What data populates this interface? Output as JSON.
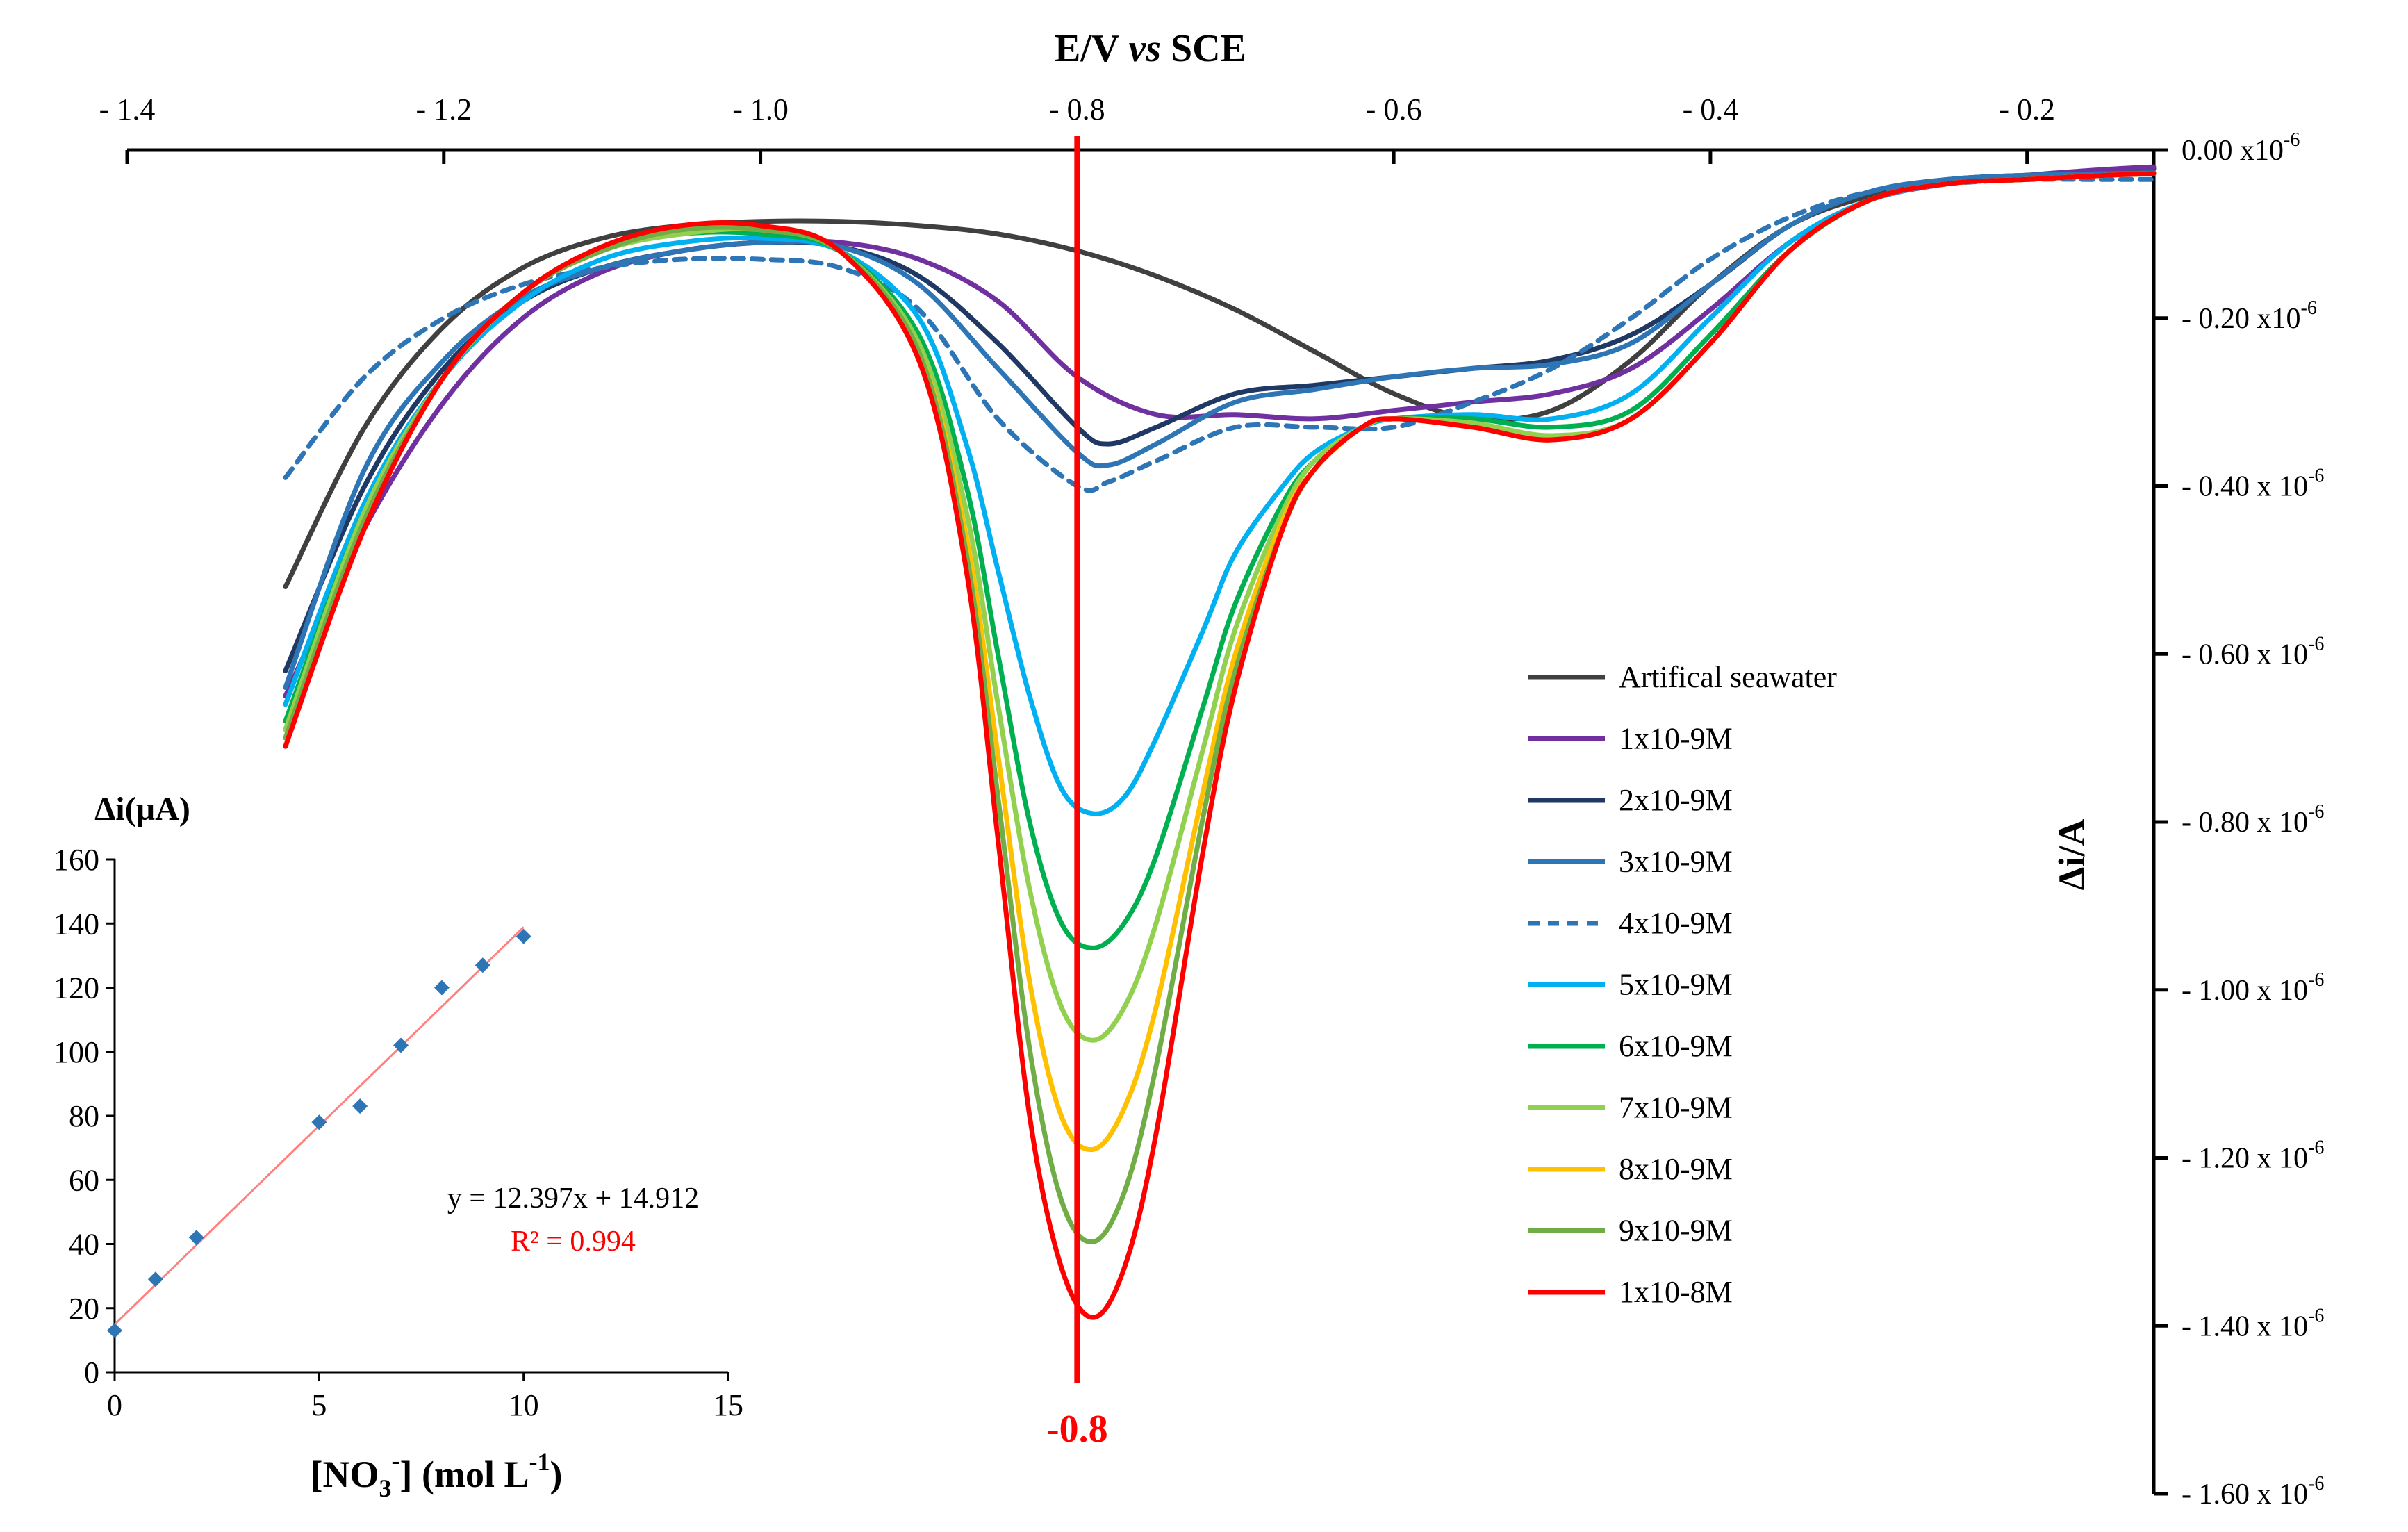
{
  "chart_data": [
    {
      "type": "line",
      "title": "",
      "xlabel_parts": [
        "E/V ",
        "vs",
        " SCE"
      ],
      "ylabel": "Δi/A",
      "xlim": [
        -1.4,
        -0.12
      ],
      "ylim": [
        0,
        1.6
      ],
      "x_ticks": [
        {
          "value": -1.4,
          "label": "- 1.4"
        },
        {
          "value": -1.2,
          "label": "- 1.2"
        },
        {
          "value": -1.0,
          "label": "- 1.0"
        },
        {
          "value": -0.8,
          "label": "- 0.8"
        },
        {
          "value": -0.6,
          "label": "- 0.6"
        },
        {
          "value": -0.4,
          "label": "- 0.4"
        },
        {
          "value": -0.2,
          "label": "- 0.2"
        }
      ],
      "y_ticks": [
        {
          "value": 0.0,
          "label": "0.00 x10",
          "exp": "-6"
        },
        {
          "value": 0.2,
          "label": "- 0.20 x10",
          "exp": "-6"
        },
        {
          "value": 0.4,
          "label": "- 0.40 x 10",
          "exp": "-6"
        },
        {
          "value": 0.6,
          "label": "- 0.60 x 10",
          "exp": "-6"
        },
        {
          "value": 0.8,
          "label": "- 0.80 x 10",
          "exp": "-6"
        },
        {
          "value": 1.0,
          "label": "- 1.00 x 10",
          "exp": "-6"
        },
        {
          "value": 1.2,
          "label": "- 1.20 x 10",
          "exp": "-6"
        },
        {
          "value": 1.4,
          "label": "- 1.40 x 10",
          "exp": "-6"
        },
        {
          "value": 1.6,
          "label": "- 1.60 x 10",
          "exp": "-6"
        }
      ],
      "y_units_note": "values are -Δi in µA (axis shows negative current ×10^-6 A)",
      "marker_line": {
        "x": -0.8,
        "label": "-0.8",
        "color": "#ff0000"
      },
      "series": [
        {
          "name": "Artifical seawater",
          "color": "#404040",
          "dash": false,
          "x": [
            -1.3,
            -1.25,
            -1.2,
            -1.15,
            -1.1,
            -1.05,
            -1.0,
            -0.95,
            -0.9,
            -0.85,
            -0.8,
            -0.75,
            -0.7,
            -0.65,
            -0.6,
            -0.55,
            -0.5,
            -0.45,
            -0.4,
            -0.35,
            -0.3,
            -0.25,
            -0.2,
            -0.15,
            -0.12
          ],
          "y": [
            0.52,
            0.33,
            0.21,
            0.14,
            0.105,
            0.09,
            0.085,
            0.085,
            0.09,
            0.1,
            0.12,
            0.15,
            0.19,
            0.24,
            0.29,
            0.32,
            0.31,
            0.25,
            0.16,
            0.09,
            0.055,
            0.04,
            0.03,
            0.025,
            0.022
          ]
        },
        {
          "name": "1x10-9M",
          "color": "#7030a0",
          "dash": false,
          "x": [
            -1.3,
            -1.25,
            -1.2,
            -1.15,
            -1.1,
            -1.05,
            -1.0,
            -0.95,
            -0.9,
            -0.85,
            -0.8,
            -0.75,
            -0.7,
            -0.65,
            -0.6,
            -0.55,
            -0.5,
            -0.45,
            -0.4,
            -0.35,
            -0.3,
            -0.25,
            -0.2,
            -0.15,
            -0.12
          ],
          "y": [
            0.65,
            0.45,
            0.3,
            0.2,
            0.145,
            0.12,
            0.11,
            0.11,
            0.13,
            0.18,
            0.27,
            0.315,
            0.315,
            0.32,
            0.31,
            0.3,
            0.29,
            0.26,
            0.19,
            0.11,
            0.06,
            0.04,
            0.03,
            0.023,
            0.02
          ]
        },
        {
          "name": "2x10-9M",
          "color": "#1f3864",
          "dash": false,
          "x": [
            -1.3,
            -1.25,
            -1.2,
            -1.15,
            -1.1,
            -1.05,
            -1.0,
            -0.95,
            -0.9,
            -0.85,
            -0.8,
            -0.78,
            -0.75,
            -0.7,
            -0.65,
            -0.6,
            -0.55,
            -0.5,
            -0.45,
            -0.4,
            -0.35,
            -0.3,
            -0.25,
            -0.2,
            -0.15,
            -0.12
          ],
          "y": [
            0.62,
            0.4,
            0.26,
            0.18,
            0.14,
            0.12,
            0.11,
            0.115,
            0.15,
            0.23,
            0.33,
            0.35,
            0.33,
            0.29,
            0.28,
            0.27,
            0.26,
            0.25,
            0.22,
            0.16,
            0.09,
            0.05,
            0.035,
            0.03,
            0.028,
            0.027
          ]
        },
        {
          "name": "3x10-9M",
          "color": "#2e75b6",
          "dash": false,
          "x": [
            -1.3,
            -1.25,
            -1.2,
            -1.15,
            -1.1,
            -1.05,
            -1.0,
            -0.95,
            -0.9,
            -0.85,
            -0.8,
            -0.78,
            -0.75,
            -0.7,
            -0.65,
            -0.6,
            -0.55,
            -0.5,
            -0.45,
            -0.4,
            -0.35,
            -0.3,
            -0.25,
            -0.2,
            -0.15,
            -0.12
          ],
          "y": [
            0.64,
            0.38,
            0.25,
            0.175,
            0.14,
            0.12,
            0.11,
            0.115,
            0.16,
            0.26,
            0.36,
            0.375,
            0.35,
            0.3,
            0.285,
            0.27,
            0.26,
            0.255,
            0.23,
            0.16,
            0.09,
            0.05,
            0.035,
            0.03,
            0.028,
            0.027
          ]
        },
        {
          "name": "4x10-9M",
          "color": "#2e75b6",
          "dash": true,
          "x": [
            -1.3,
            -1.25,
            -1.2,
            -1.15,
            -1.1,
            -1.05,
            -1.0,
            -0.95,
            -0.9,
            -0.85,
            -0.8,
            -0.78,
            -0.75,
            -0.7,
            -0.65,
            -0.6,
            -0.55,
            -0.5,
            -0.45,
            -0.4,
            -0.35,
            -0.3,
            -0.25,
            -0.2,
            -0.15,
            -0.12
          ],
          "y": [
            0.39,
            0.27,
            0.2,
            0.16,
            0.14,
            0.13,
            0.13,
            0.14,
            0.19,
            0.32,
            0.4,
            0.395,
            0.37,
            0.33,
            0.33,
            0.33,
            0.3,
            0.26,
            0.2,
            0.13,
            0.08,
            0.05,
            0.04,
            0.035,
            0.035,
            0.035
          ]
        },
        {
          "name": "5x10-9M",
          "color": "#00b0f0",
          "dash": false,
          "x": [
            -1.3,
            -1.25,
            -1.2,
            -1.15,
            -1.1,
            -1.05,
            -1.0,
            -0.95,
            -0.9,
            -0.87,
            -0.85,
            -0.83,
            -0.81,
            -0.79,
            -0.77,
            -0.75,
            -0.72,
            -0.7,
            -0.67,
            -0.65,
            -0.62,
            -0.6,
            -0.55,
            -0.5,
            -0.45,
            -0.4,
            -0.35,
            -0.3,
            -0.25,
            -0.2,
            -0.15,
            -0.12
          ],
          "y": [
            0.66,
            0.42,
            0.27,
            0.18,
            0.13,
            0.11,
            0.105,
            0.12,
            0.2,
            0.35,
            0.5,
            0.65,
            0.76,
            0.79,
            0.77,
            0.7,
            0.57,
            0.48,
            0.4,
            0.36,
            0.33,
            0.32,
            0.315,
            0.32,
            0.29,
            0.2,
            0.11,
            0.06,
            0.04,
            0.035,
            0.03,
            0.028
          ]
        },
        {
          "name": "6x10-9M",
          "color": "#00b050",
          "dash": false,
          "x": [
            -1.3,
            -1.25,
            -1.2,
            -1.15,
            -1.1,
            -1.05,
            -1.0,
            -0.95,
            -0.9,
            -0.87,
            -0.85,
            -0.83,
            -0.81,
            -0.79,
            -0.77,
            -0.75,
            -0.72,
            -0.7,
            -0.67,
            -0.65,
            -0.62,
            -0.6,
            -0.55,
            -0.5,
            -0.45,
            -0.4,
            -0.35,
            -0.3,
            -0.25,
            -0.2,
            -0.15,
            -0.12
          ],
          "y": [
            0.68,
            0.43,
            0.27,
            0.17,
            0.12,
            0.1,
            0.1,
            0.12,
            0.22,
            0.4,
            0.6,
            0.8,
            0.92,
            0.95,
            0.92,
            0.84,
            0.66,
            0.54,
            0.42,
            0.37,
            0.33,
            0.32,
            0.32,
            0.33,
            0.31,
            0.22,
            0.12,
            0.06,
            0.04,
            0.035,
            0.03,
            0.028
          ]
        },
        {
          "name": "7x10-9M",
          "color": "#92d050",
          "dash": false,
          "x": [
            -1.3,
            -1.25,
            -1.2,
            -1.15,
            -1.1,
            -1.05,
            -1.0,
            -0.95,
            -0.9,
            -0.87,
            -0.85,
            -0.83,
            -0.81,
            -0.79,
            -0.77,
            -0.75,
            -0.72,
            -0.7,
            -0.67,
            -0.65,
            -0.62,
            -0.6,
            -0.55,
            -0.5,
            -0.45,
            -0.4,
            -0.35,
            -0.3,
            -0.25,
            -0.2,
            -0.15,
            -0.12
          ],
          "y": [
            0.69,
            0.43,
            0.27,
            0.17,
            0.12,
            0.1,
            0.095,
            0.12,
            0.23,
            0.43,
            0.66,
            0.88,
            1.02,
            1.06,
            1.02,
            0.92,
            0.71,
            0.57,
            0.43,
            0.37,
            0.33,
            0.32,
            0.325,
            0.34,
            0.32,
            0.23,
            0.12,
            0.06,
            0.04,
            0.035,
            0.03,
            0.028
          ]
        },
        {
          "name": "8x10-9M",
          "color": "#ffc000",
          "dash": false,
          "x": [
            -1.3,
            -1.25,
            -1.2,
            -1.15,
            -1.1,
            -1.05,
            -1.0,
            -0.95,
            -0.9,
            -0.87,
            -0.85,
            -0.83,
            -0.81,
            -0.79,
            -0.77,
            -0.75,
            -0.72,
            -0.7,
            -0.67,
            -0.65,
            -0.62,
            -0.6,
            -0.55,
            -0.5,
            -0.45,
            -0.4,
            -0.35,
            -0.3,
            -0.25,
            -0.2,
            -0.15,
            -0.12
          ],
          "y": [
            0.7,
            0.44,
            0.27,
            0.17,
            0.12,
            0.095,
            0.095,
            0.12,
            0.24,
            0.46,
            0.72,
            0.99,
            1.15,
            1.19,
            1.14,
            1.02,
            0.76,
            0.6,
            0.44,
            0.38,
            0.33,
            0.32,
            0.33,
            0.345,
            0.32,
            0.23,
            0.12,
            0.06,
            0.04,
            0.035,
            0.03,
            0.028
          ]
        },
        {
          "name": "9x10-9M",
          "color": "#70ad47",
          "dash": false,
          "x": [
            -1.3,
            -1.25,
            -1.2,
            -1.15,
            -1.1,
            -1.05,
            -1.0,
            -0.95,
            -0.9,
            -0.87,
            -0.85,
            -0.83,
            -0.81,
            -0.79,
            -0.77,
            -0.75,
            -0.72,
            -0.7,
            -0.67,
            -0.65,
            -0.62,
            -0.6,
            -0.55,
            -0.5,
            -0.45,
            -0.4,
            -0.35,
            -0.3,
            -0.25,
            -0.2,
            -0.15,
            -0.12
          ],
          "y": [
            0.7,
            0.44,
            0.27,
            0.17,
            0.12,
            0.095,
            0.095,
            0.12,
            0.24,
            0.48,
            0.77,
            1.07,
            1.25,
            1.3,
            1.24,
            1.09,
            0.79,
            0.62,
            0.45,
            0.38,
            0.33,
            0.32,
            0.33,
            0.345,
            0.32,
            0.23,
            0.12,
            0.06,
            0.04,
            0.035,
            0.03,
            0.028
          ]
        },
        {
          "name": "1x10-8M",
          "color": "#ff0000",
          "dash": false,
          "x": [
            -1.3,
            -1.25,
            -1.2,
            -1.15,
            -1.1,
            -1.05,
            -1.0,
            -0.95,
            -0.9,
            -0.87,
            -0.85,
            -0.83,
            -0.81,
            -0.79,
            -0.77,
            -0.75,
            -0.72,
            -0.7,
            -0.67,
            -0.65,
            -0.62,
            -0.6,
            -0.55,
            -0.5,
            -0.45,
            -0.4,
            -0.35,
            -0.3,
            -0.25,
            -0.2,
            -0.15,
            -0.12
          ],
          "y": [
            0.71,
            0.45,
            0.27,
            0.17,
            0.115,
            0.09,
            0.09,
            0.12,
            0.25,
            0.5,
            0.82,
            1.15,
            1.33,
            1.39,
            1.33,
            1.17,
            0.83,
            0.64,
            0.45,
            0.38,
            0.33,
            0.32,
            0.33,
            0.345,
            0.32,
            0.23,
            0.12,
            0.06,
            0.04,
            0.035,
            0.03,
            0.028
          ]
        }
      ]
    },
    {
      "type": "scatter",
      "title": "",
      "xlabel": "[NO3-] (mol L-1)",
      "xlabel_parts": [
        "[NO",
        "3",
        "-",
        "] (mol L",
        "-1",
        ")"
      ],
      "ylabel": "Δi(µA)",
      "xlim": [
        0,
        15
      ],
      "ylim": [
        0,
        160
      ],
      "x_ticks": [
        0,
        5,
        10,
        15
      ],
      "y_ticks": [
        0,
        20,
        40,
        60,
        80,
        100,
        120,
        140,
        160
      ],
      "points": {
        "x": [
          0,
          1,
          2,
          5,
          6,
          7,
          8,
          9,
          10
        ],
        "y": [
          13,
          29,
          42,
          78,
          83,
          102,
          120,
          127,
          136
        ]
      },
      "point_color": "#2e75b6",
      "fit": {
        "slope": 12.397,
        "intercept": 14.912,
        "x_range": [
          0,
          10
        ],
        "color": "#ff8080"
      },
      "equation": "y = 12.397x + 14.912",
      "r_squared": "R² = 0.994",
      "r_squared_color": "#ff0000"
    }
  ]
}
